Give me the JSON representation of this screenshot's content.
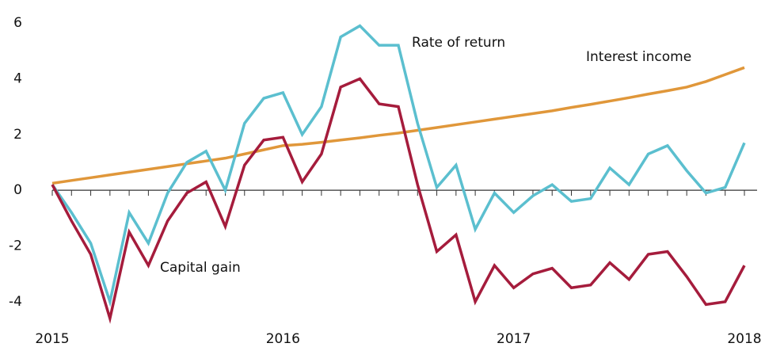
{
  "chart_data": {
    "type": "line",
    "categories": [
      "2015",
      null,
      null,
      null,
      null,
      null,
      null,
      null,
      null,
      null,
      null,
      null,
      "2016",
      null,
      null,
      null,
      null,
      null,
      null,
      null,
      null,
      null,
      null,
      null,
      "2017",
      null,
      null,
      null,
      null,
      null,
      null,
      null,
      null,
      null,
      null,
      null,
      "2018"
    ],
    "series": [
      {
        "name": "Interest income",
        "color": "#e0973a",
        "values": [
          0.25,
          0.35,
          0.45,
          0.55,
          0.65,
          0.75,
          0.85,
          0.95,
          1.05,
          1.15,
          1.3,
          1.45,
          1.6,
          1.65,
          1.72,
          1.8,
          1.88,
          1.97,
          2.05,
          2.15,
          2.25,
          2.35,
          2.45,
          2.55,
          2.65,
          2.75,
          2.85,
          2.97,
          3.08,
          3.2,
          3.32,
          3.45,
          3.57,
          3.7,
          3.9,
          4.15,
          4.4
        ]
      },
      {
        "name": "Rate of return",
        "color": "#5bbfcf",
        "values": [
          0.2,
          -0.8,
          -1.9,
          -4.0,
          -0.8,
          -1.9,
          -0.1,
          1.0,
          1.4,
          0.0,
          2.4,
          3.3,
          3.5,
          2.0,
          3.0,
          5.5,
          5.9,
          5.2,
          5.2,
          2.4,
          0.1,
          0.9,
          -1.4,
          -0.1,
          -0.8,
          -0.2,
          0.2,
          -0.4,
          -0.3,
          0.8,
          0.2,
          1.3,
          1.6,
          0.7,
          -0.1,
          0.1,
          1.7
        ]
      },
      {
        "name": "Capital gain",
        "color": "#a51c3c",
        "values": [
          0.2,
          -1.1,
          -2.3,
          -4.6,
          -1.5,
          -2.7,
          -1.1,
          -0.1,
          0.3,
          -1.3,
          0.9,
          1.8,
          1.9,
          0.3,
          1.3,
          3.7,
          4.0,
          3.1,
          3.0,
          0.2,
          -2.2,
          -1.6,
          -4.0,
          -2.7,
          -3.5,
          -3.0,
          -2.8,
          -3.5,
          -3.4,
          -2.6,
          -3.2,
          -2.3,
          -2.2,
          -3.1,
          -4.1,
          -4.0,
          -2.7
        ]
      }
    ],
    "ylim": [
      -4.8,
      6.2
    ],
    "yticks": [
      -4,
      -2,
      0,
      2,
      4,
      6
    ],
    "grid": false
  }
}
